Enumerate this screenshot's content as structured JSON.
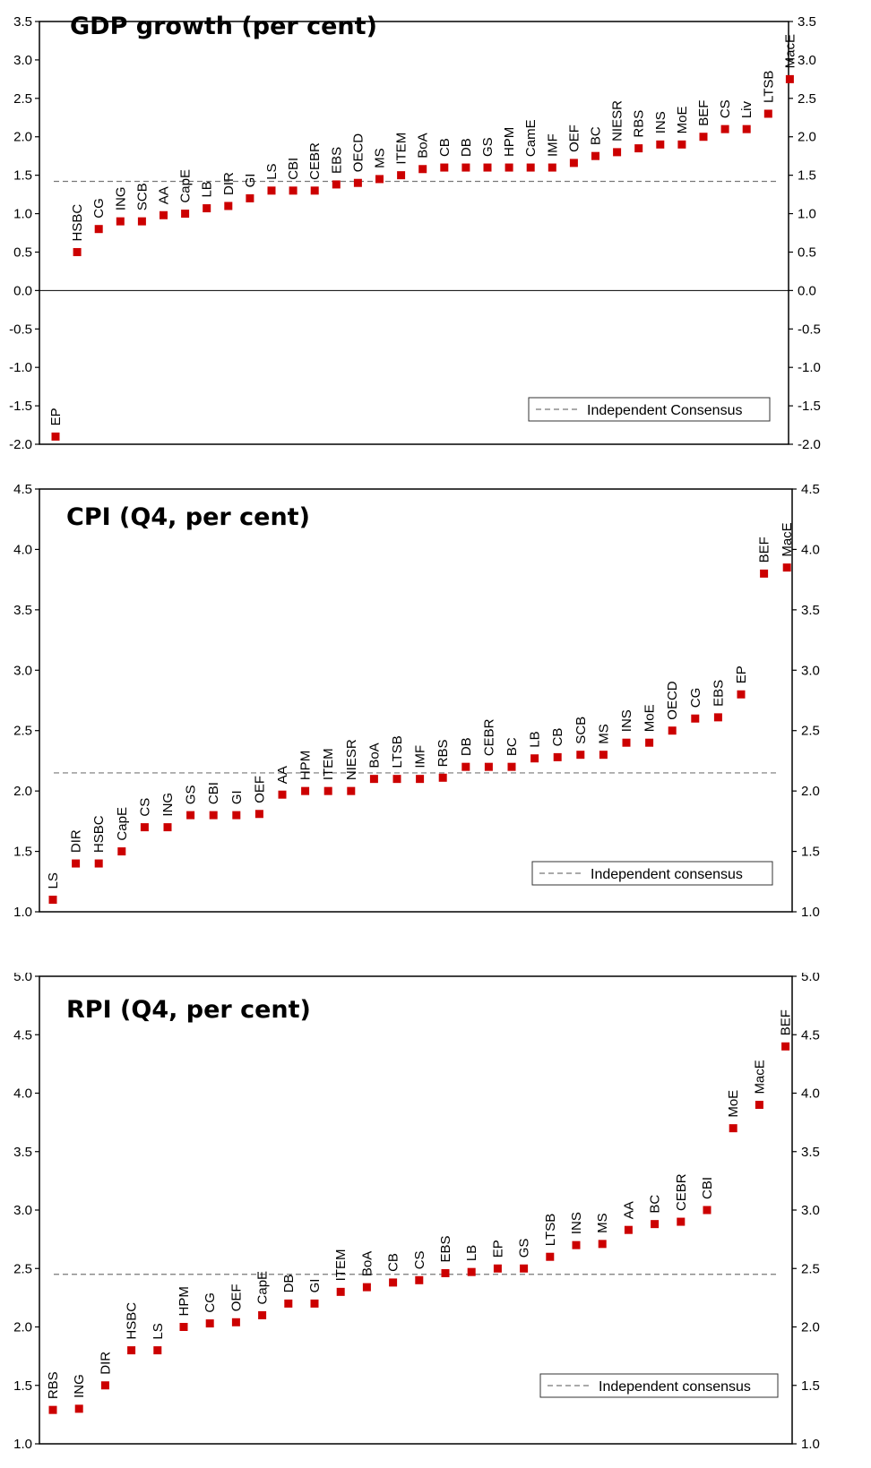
{
  "chart_data": [
    {
      "type": "scatter",
      "title": "GDP growth (per cent)",
      "ylim": [
        -2.0,
        3.5
      ],
      "ytick_step": 0.5,
      "ytick_labels": [
        "-2.0",
        "-1.5",
        "-1.0",
        "-0.5",
        "0.0",
        "0.5",
        "1.0",
        "1.5",
        "2.0",
        "2.5",
        "3.0",
        "3.5"
      ],
      "zero_line": true,
      "consensus": 1.42,
      "legend": "Independent Consensus",
      "legend_position": "bottom-right",
      "marker_color": "#cc0000",
      "points": [
        {
          "label": "EP",
          "value": -1.9
        },
        {
          "label": "HSBC",
          "value": 0.5
        },
        {
          "label": "CG",
          "value": 0.8
        },
        {
          "label": "ING",
          "value": 0.9
        },
        {
          "label": "SCB",
          "value": 0.9
        },
        {
          "label": "AA",
          "value": 0.98
        },
        {
          "label": "CapE",
          "value": 1.0
        },
        {
          "label": "LB",
          "value": 1.07
        },
        {
          "label": "DIR",
          "value": 1.1
        },
        {
          "label": "GI",
          "value": 1.2
        },
        {
          "label": "LS",
          "value": 1.3
        },
        {
          "label": "CBI",
          "value": 1.3
        },
        {
          "label": "CEBR",
          "value": 1.3
        },
        {
          "label": "EBS",
          "value": 1.38
        },
        {
          "label": "OECD",
          "value": 1.4
        },
        {
          "label": "MS",
          "value": 1.45
        },
        {
          "label": "ITEM",
          "value": 1.5
        },
        {
          "label": "BoA",
          "value": 1.58
        },
        {
          "label": "CB",
          "value": 1.6
        },
        {
          "label": "DB",
          "value": 1.6
        },
        {
          "label": "GS",
          "value": 1.6
        },
        {
          "label": "HPM",
          "value": 1.6
        },
        {
          "label": "CamE",
          "value": 1.6
        },
        {
          "label": "IMF",
          "value": 1.6
        },
        {
          "label": "OEF",
          "value": 1.66
        },
        {
          "label": "BC",
          "value": 1.75
        },
        {
          "label": "NIESR",
          "value": 1.8
        },
        {
          "label": "RBS",
          "value": 1.85
        },
        {
          "label": "INS",
          "value": 1.9
        },
        {
          "label": "MoE",
          "value": 1.9
        },
        {
          "label": "BEF",
          "value": 2.0
        },
        {
          "label": "CS",
          "value": 2.1
        },
        {
          "label": "Liv",
          "value": 2.1
        },
        {
          "label": "LTSB",
          "value": 2.3
        },
        {
          "label": "MacE",
          "value": 2.75
        }
      ]
    },
    {
      "type": "scatter",
      "title": "CPI (Q4, per cent)",
      "ylim": [
        1.0,
        4.5
      ],
      "ytick_step": 0.5,
      "ytick_labels": [
        "1.0",
        "1.5",
        "2.0",
        "2.5",
        "3.0",
        "3.5",
        "4.0",
        "4.5"
      ],
      "zero_line": false,
      "consensus": 2.15,
      "legend": "Independent consensus",
      "legend_position": "bottom-right",
      "marker_color": "#cc0000",
      "points": [
        {
          "label": "LS",
          "value": 1.1
        },
        {
          "label": "DIR",
          "value": 1.4
        },
        {
          "label": "HSBC",
          "value": 1.4
        },
        {
          "label": "CapE",
          "value": 1.5
        },
        {
          "label": "CS",
          "value": 1.7
        },
        {
          "label": "ING",
          "value": 1.7
        },
        {
          "label": "GS",
          "value": 1.8
        },
        {
          "label": "CBI",
          "value": 1.8
        },
        {
          "label": "GI",
          "value": 1.8
        },
        {
          "label": "OEF",
          "value": 1.81
        },
        {
          "label": "AA",
          "value": 1.97
        },
        {
          "label": "HPM",
          "value": 2.0
        },
        {
          "label": "ITEM",
          "value": 2.0
        },
        {
          "label": "NIESR",
          "value": 2.0
        },
        {
          "label": "BoA",
          "value": 2.1
        },
        {
          "label": "LTSB",
          "value": 2.1
        },
        {
          "label": "IMF",
          "value": 2.1
        },
        {
          "label": "RBS",
          "value": 2.11
        },
        {
          "label": "DB",
          "value": 2.2
        },
        {
          "label": "CEBR",
          "value": 2.2
        },
        {
          "label": "BC",
          "value": 2.2
        },
        {
          "label": "LB",
          "value": 2.27
        },
        {
          "label": "CB",
          "value": 2.28
        },
        {
          "label": "SCB",
          "value": 2.3
        },
        {
          "label": "MS",
          "value": 2.3
        },
        {
          "label": "INS",
          "value": 2.4
        },
        {
          "label": "MoE",
          "value": 2.4
        },
        {
          "label": "OECD",
          "value": 2.5
        },
        {
          "label": "CG",
          "value": 2.6
        },
        {
          "label": "EBS",
          "value": 2.61
        },
        {
          "label": "EP",
          "value": 2.8
        },
        {
          "label": "BEF",
          "value": 3.8
        },
        {
          "label": "MacE",
          "value": 3.85
        }
      ]
    },
    {
      "type": "scatter",
      "title": "RPI (Q4, per cent)",
      "ylim": [
        1.0,
        5.0
      ],
      "ytick_step": 0.5,
      "ytick_labels": [
        "1.0",
        "1.5",
        "2.0",
        "2.5",
        "3.0",
        "3.5",
        "4.0",
        "4.5",
        "5.0"
      ],
      "zero_line": false,
      "consensus": 2.45,
      "legend": "Independent consensus",
      "legend_position": "bottom-right",
      "marker_color": "#cc0000",
      "points": [
        {
          "label": "RBS",
          "value": 1.29
        },
        {
          "label": "ING",
          "value": 1.3
        },
        {
          "label": "DIR",
          "value": 1.5
        },
        {
          "label": "HSBC",
          "value": 1.8
        },
        {
          "label": "LS",
          "value": 1.8
        },
        {
          "label": "HPM",
          "value": 2.0
        },
        {
          "label": "CG",
          "value": 2.03
        },
        {
          "label": "OEF",
          "value": 2.04
        },
        {
          "label": "CapE",
          "value": 2.1
        },
        {
          "label": "DB",
          "value": 2.2
        },
        {
          "label": "GI",
          "value": 2.2
        },
        {
          "label": "ITEM",
          "value": 2.3
        },
        {
          "label": "BoA",
          "value": 2.34
        },
        {
          "label": "CB",
          "value": 2.38
        },
        {
          "label": "CS",
          "value": 2.4
        },
        {
          "label": "EBS",
          "value": 2.46
        },
        {
          "label": "LB",
          "value": 2.47
        },
        {
          "label": "EP",
          "value": 2.5
        },
        {
          "label": "GS",
          "value": 2.5
        },
        {
          "label": "LTSB",
          "value": 2.6
        },
        {
          "label": "INS",
          "value": 2.7
        },
        {
          "label": "MS",
          "value": 2.71
        },
        {
          "label": "AA",
          "value": 2.83
        },
        {
          "label": "BC",
          "value": 2.88
        },
        {
          "label": "CEBR",
          "value": 2.9
        },
        {
          "label": "CBI",
          "value": 3.0
        },
        {
          "label": "MoE",
          "value": 3.7
        },
        {
          "label": "MacE",
          "value": 3.9
        },
        {
          "label": "BEF",
          "value": 4.4
        }
      ]
    }
  ]
}
